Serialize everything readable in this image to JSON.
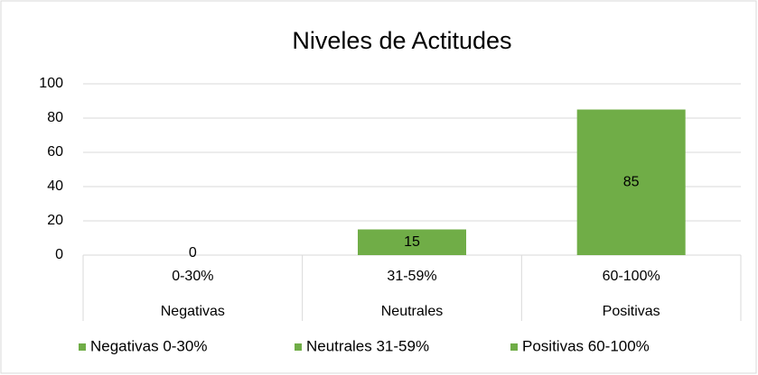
{
  "chart_data": {
    "type": "bar",
    "title": "Niveles de Actitudes",
    "categories": [
      "0-30%",
      "31-59%",
      "60-100%"
    ],
    "categories_level2": [
      "Negativas",
      "Neutrales",
      "Positivas"
    ],
    "series": [
      {
        "name": "Negativas 0-30%",
        "color": "#70ad47",
        "values": [
          0,
          null,
          null
        ]
      },
      {
        "name": "Neutrales 31-59%",
        "color": "#70ad47",
        "values": [
          null,
          15,
          null
        ]
      },
      {
        "name": "Positivas 60-100%",
        "color": "#70ad47",
        "values": [
          null,
          null,
          85
        ]
      }
    ],
    "ylim": [
      0,
      100
    ],
    "yticks": [
      0,
      20,
      40,
      60,
      80,
      100
    ],
    "grid": true,
    "legend": "bottom"
  }
}
